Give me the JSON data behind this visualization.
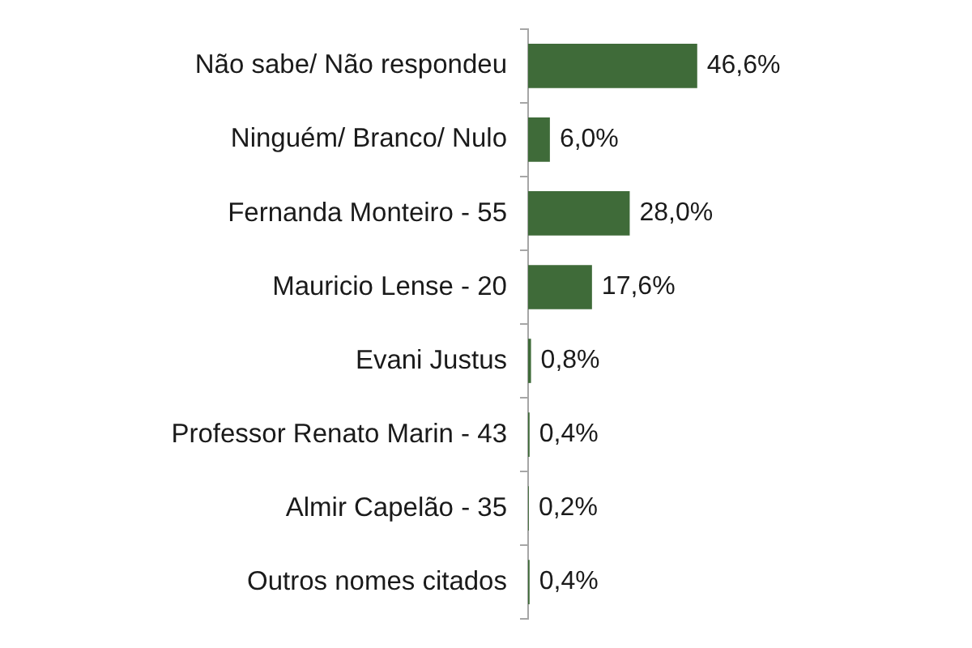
{
  "chart_data": {
    "type": "bar",
    "orientation": "horizontal",
    "categories": [
      "Não sabe/ Não respondeu",
      "Ninguém/ Branco/ Nulo",
      "Fernanda Monteiro - 55",
      "Mauricio Lense - 20",
      "Evani Justus",
      "Professor Renato Marin - 43",
      "Almir Capelão - 35",
      "Outros nomes citados"
    ],
    "values": [
      46.6,
      6.0,
      28.0,
      17.6,
      0.8,
      0.4,
      0.2,
      0.4
    ],
    "value_labels": [
      "46,6%",
      "6,0%",
      "28,0%",
      "17,6%",
      "0,8%",
      "0,4%",
      "0,2%",
      "0,4%"
    ],
    "color": "#3f6b39",
    "tick_labels": "y"
  }
}
